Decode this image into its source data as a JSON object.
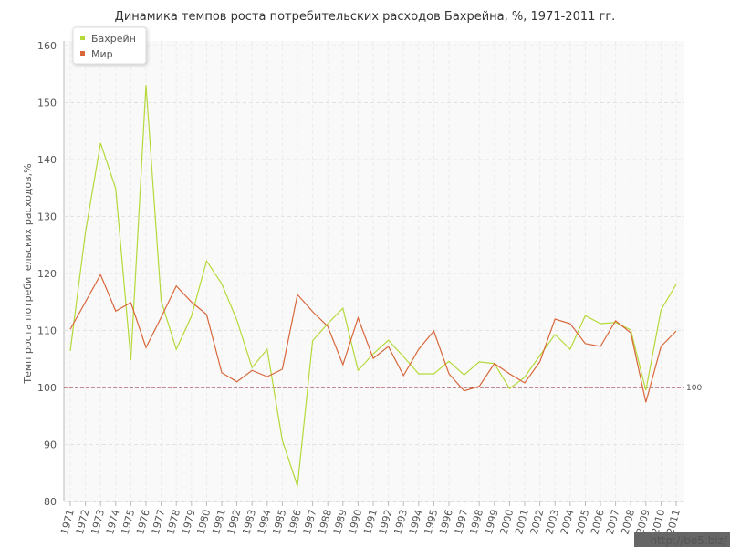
{
  "chart_data": {
    "type": "line",
    "title": "Динамика темпов роста потребительских расходов Бахрейна, %, 1971-2011 гг.",
    "y_label": "Темп роста потребительских расходов,%",
    "categories": [
      "1971",
      "1972",
      "1973",
      "1974",
      "1975",
      "1976",
      "1977",
      "1978",
      "1979",
      "1980",
      "1981",
      "1982",
      "1983",
      "1984",
      "1985",
      "1986",
      "1987",
      "1988",
      "1989",
      "1990",
      "1991",
      "1992",
      "1993",
      "1994",
      "1995",
      "1996",
      "1997",
      "1998",
      "1999",
      "2000",
      "2001",
      "2002",
      "2003",
      "2004",
      "2005",
      "2006",
      "2007",
      "2008",
      "2009",
      "2010",
      "2011"
    ],
    "series": [
      {
        "name": "Бахрейн",
        "color": "#b5d93a",
        "values": [
          106.4,
          127.2,
          142.9,
          134.9,
          104.8,
          153.1,
          115.2,
          106.7,
          112.5,
          122.2,
          118.2,
          111.8,
          103.5,
          106.7,
          90.7,
          82.7,
          108.2,
          111.2,
          113.9,
          103.0,
          105.9,
          108.3,
          105.4,
          102.4,
          102.4,
          104.6,
          102.2,
          104.5,
          104.2,
          99.8,
          101.8,
          105.6,
          109.3,
          106.7,
          112.6,
          111.2,
          111.4,
          110.1,
          99.5,
          113.6,
          118.1
        ]
      },
      {
        "name": "Мир",
        "color": "#d9663a",
        "values": [
          110.2,
          115.0,
          119.8,
          113.4,
          114.9,
          107.0,
          112.3,
          117.8,
          115.0,
          112.8,
          102.6,
          101.0,
          103.0,
          101.9,
          103.2,
          116.3,
          113.3,
          110.7,
          104.0,
          112.2,
          105.1,
          107.2,
          102.1,
          106.7,
          109.9,
          102.4,
          99.4,
          100.2,
          104.2,
          102.4,
          100.8,
          104.5,
          112.0,
          111.2,
          107.7,
          107.2,
          111.7,
          109.6,
          97.4,
          107.2,
          109.9
        ]
      }
    ],
    "ylim": [
      80,
      160
    ],
    "yticks": [
      80,
      90,
      100,
      110,
      120,
      130,
      140,
      150,
      160
    ],
    "grid": true,
    "reference_line": 100,
    "reference_color": "#8b1a2a",
    "legend": "top-left",
    "watermark": "http://be5.biz/"
  }
}
